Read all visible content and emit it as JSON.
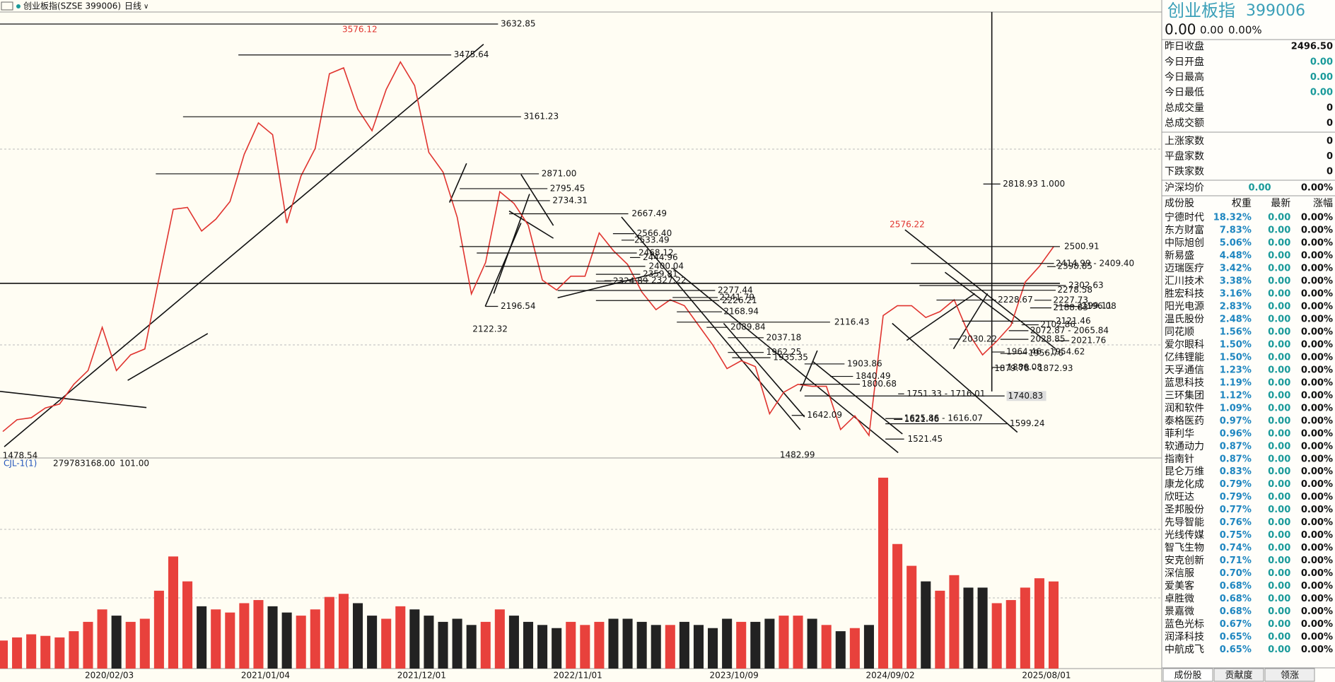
{
  "toolbar": {
    "title": "创业板指(SZSE 399006)",
    "period": "日线"
  },
  "indicator": {
    "name": "CJL-1(1)",
    "values": [
      "279783168.00",
      "101.00"
    ]
  },
  "chart_data": [
    {
      "type": "line",
      "color": "#e0342f",
      "categories": [
        null,
        null,
        null,
        null,
        null,
        null,
        null,
        "2020/02/03",
        null,
        null,
        null,
        null,
        null,
        null,
        null,
        null,
        null,
        null,
        "2021/01/04",
        null,
        null,
        null,
        null,
        null,
        null,
        null,
        null,
        null,
        null,
        "2021/12/01",
        null,
        null,
        null,
        null,
        null,
        null,
        null,
        null,
        null,
        null,
        "2022/11/01",
        null,
        null,
        null,
        null,
        null,
        null,
        null,
        null,
        null,
        null,
        "2023/10/09",
        null,
        null,
        null,
        null,
        null,
        null,
        null,
        null,
        null,
        null,
        "2024/09/02",
        null,
        null,
        null,
        null,
        null,
        null,
        null,
        null,
        null,
        null,
        "2025/08/01",
        null
      ],
      "values": [
        1560,
        1620,
        1630,
        1680,
        1700,
        1800,
        1870,
        2090,
        1870,
        1950,
        1980,
        2340,
        2690,
        2700,
        2580,
        2640,
        2730,
        2970,
        3130,
        3070,
        2620,
        2860,
        3000,
        3380,
        3410,
        3200,
        3090,
        3300,
        3440,
        3320,
        2980,
        2880,
        2650,
        2260,
        2420,
        2780,
        2720,
        2610,
        2330,
        2280,
        2350,
        2350,
        2570,
        2480,
        2410,
        2270,
        2180,
        2230,
        2200,
        2100,
        2000,
        1880,
        1920,
        1890,
        1650,
        1760,
        1800,
        1790,
        1790,
        1570,
        1640,
        1540,
        2150,
        2200,
        2200,
        2140,
        2170,
        2230,
        2060,
        1950,
        2020,
        2100,
        2320,
        2400,
        2500
      ],
      "ylim": [
        1429,
        3694
      ],
      "levels": [
        3632.85,
        3576.12,
        3475.64,
        3161.23,
        {
          "value": 2871,
          "label": "2871.00"
        },
        2795.45,
        2734.31,
        2667.49,
        {
          "value": 2566.4,
          "label": "2566.40"
        },
        2533.49,
        2500.91,
        2468.12,
        2444.96,
        {
          "value": 2414.99,
          "label": "2414.99 - 2409.40"
        },
        2400.04,
        2398.85,
        2359.81,
        2327.22,
        2324.89,
        2302.63,
        2277.44,
        2278.58,
        2241.79,
        2228.67,
        2227.73,
        2226.21,
        2199.11,
        2196.54,
        2196.08,
        2188.83,
        2168.94,
        2122.32,
        2121.46,
        2116.43,
        2102.86,
        2089.84,
        {
          "value": 2072.87,
          "label": "2072.87 - 2065.84"
        },
        2037.18,
        2030.22,
        2028.85,
        2021.76,
        1962.25,
        1956.76,
        {
          "value": 1964.46,
          "label": "1964.46 - 1954.62"
        },
        1935.35,
        1903.86,
        1886.08,
        {
          "value": 1879.78,
          "label": "1879.78 - 1872.93"
        },
        1840.49,
        1800.68,
        {
          "value": 1751.33,
          "label": "1751.33 - 1716.01"
        },
        1740.83,
        1642.09,
        1621.46,
        {
          "value": 1625.86,
          "label": "1625.86 - 1616.07"
        },
        1599.24,
        1521.45,
        1482.99,
        1478.54,
        2576.22,
        {
          "value": 2818.93,
          "label": "2818.93 1.000"
        }
      ]
    },
    {
      "type": "bar",
      "values": [
        90000000,
        100000000,
        110000000,
        105000000,
        100000000,
        120000000,
        150000000,
        190000000,
        170000000,
        150000000,
        160000000,
        250000000,
        360000000,
        280000000,
        200000000,
        190000000,
        180000000,
        210000000,
        220000000,
        200000000,
        180000000,
        170000000,
        190000000,
        230000000,
        240000000,
        210000000,
        170000000,
        160000000,
        200000000,
        190000000,
        170000000,
        150000000,
        160000000,
        140000000,
        150000000,
        190000000,
        170000000,
        150000000,
        140000000,
        130000000,
        150000000,
        140000000,
        150000000,
        160000000,
        160000000,
        150000000,
        140000000,
        140000000,
        150000000,
        140000000,
        130000000,
        160000000,
        150000000,
        150000000,
        160000000,
        170000000,
        170000000,
        160000000,
        140000000,
        120000000,
        130000000,
        140000000,
        613000000,
        400000000,
        330000000,
        280000000,
        250000000,
        300000000,
        260000000,
        260000000,
        210000000,
        220000000,
        260000000,
        290000000,
        279783168
      ],
      "ylim": [
        0,
        640000000
      ]
    }
  ],
  "panel": {
    "name": "创业板指",
    "code": "399006",
    "price": [
      "0.00",
      "0.00",
      "0.00%"
    ],
    "stats": [
      [
        "昨日收盘",
        "2496.50"
      ],
      [
        "今日开盘",
        "0.00"
      ],
      [
        "今日最高",
        "0.00"
      ],
      [
        "今日最低",
        "0.00"
      ],
      [
        "总成交量",
        "0"
      ],
      [
        "总成交额",
        "0"
      ]
    ],
    "breadth": [
      [
        "上涨家数",
        "0"
      ],
      [
        "平盘家数",
        "0"
      ],
      [
        "下跌家数",
        "0"
      ]
    ],
    "avg": [
      "沪深均价",
      "0.00",
      "0.00%"
    ],
    "columns": [
      "成份股",
      "权重",
      "最新",
      "涨幅"
    ],
    "stocks": [
      [
        "宁德时代",
        "18.32%",
        "0.00",
        "0.00%"
      ],
      [
        "东方财富",
        "7.83%",
        "0.00",
        "0.00%"
      ],
      [
        "中际旭创",
        "5.06%",
        "0.00",
        "0.00%"
      ],
      [
        "新易盛",
        "4.48%",
        "0.00",
        "0.00%"
      ],
      [
        "迈瑞医疗",
        "3.42%",
        "0.00",
        "0.00%"
      ],
      [
        "汇川技术",
        "3.38%",
        "0.00",
        "0.00%"
      ],
      [
        "胜宏科技",
        "3.16%",
        "0.00",
        "0.00%"
      ],
      [
        "阳光电源",
        "2.83%",
        "0.00",
        "0.00%"
      ],
      [
        "温氏股份",
        "2.48%",
        "0.00",
        "0.00%"
      ],
      [
        "同花顺",
        "1.56%",
        "0.00",
        "0.00%"
      ],
      [
        "爱尔眼科",
        "1.50%",
        "0.00",
        "0.00%"
      ],
      [
        "亿纬锂能",
        "1.50%",
        "0.00",
        "0.00%"
      ],
      [
        "天孚通信",
        "1.23%",
        "0.00",
        "0.00%"
      ],
      [
        "蓝思科技",
        "1.19%",
        "0.00",
        "0.00%"
      ],
      [
        "三环集团",
        "1.12%",
        "0.00",
        "0.00%"
      ],
      [
        "润和软件",
        "1.09%",
        "0.00",
        "0.00%"
      ],
      [
        "泰格医药",
        "0.97%",
        "0.00",
        "0.00%"
      ],
      [
        "菲利华",
        "0.96%",
        "0.00",
        "0.00%"
      ],
      [
        "软通动力",
        "0.87%",
        "0.00",
        "0.00%"
      ],
      [
        "指南针",
        "0.87%",
        "0.00",
        "0.00%"
      ],
      [
        "昆仑万维",
        "0.83%",
        "0.00",
        "0.00%"
      ],
      [
        "康龙化成",
        "0.79%",
        "0.00",
        "0.00%"
      ],
      [
        "欣旺达",
        "0.79%",
        "0.00",
        "0.00%"
      ],
      [
        "圣邦股份",
        "0.77%",
        "0.00",
        "0.00%"
      ],
      [
        "先导智能",
        "0.76%",
        "0.00",
        "0.00%"
      ],
      [
        "光线传媒",
        "0.75%",
        "0.00",
        "0.00%"
      ],
      [
        "智飞生物",
        "0.74%",
        "0.00",
        "0.00%"
      ],
      [
        "安克创新",
        "0.71%",
        "0.00",
        "0.00%"
      ],
      [
        "深信服",
        "0.70%",
        "0.00",
        "0.00%"
      ],
      [
        "爱美客",
        "0.68%",
        "0.00",
        "0.00%"
      ],
      [
        "卓胜微",
        "0.68%",
        "0.00",
        "0.00%"
      ],
      [
        "景嘉微",
        "0.68%",
        "0.00",
        "0.00%"
      ],
      [
        "蓝色光标",
        "0.67%",
        "0.00",
        "0.00%"
      ],
      [
        "润泽科技",
        "0.65%",
        "0.00",
        "0.00%"
      ],
      [
        "中航成飞",
        "0.65%",
        "0.00",
        "0.00%"
      ]
    ],
    "tabs": [
      "成份股",
      "贡献度",
      "领涨"
    ]
  }
}
